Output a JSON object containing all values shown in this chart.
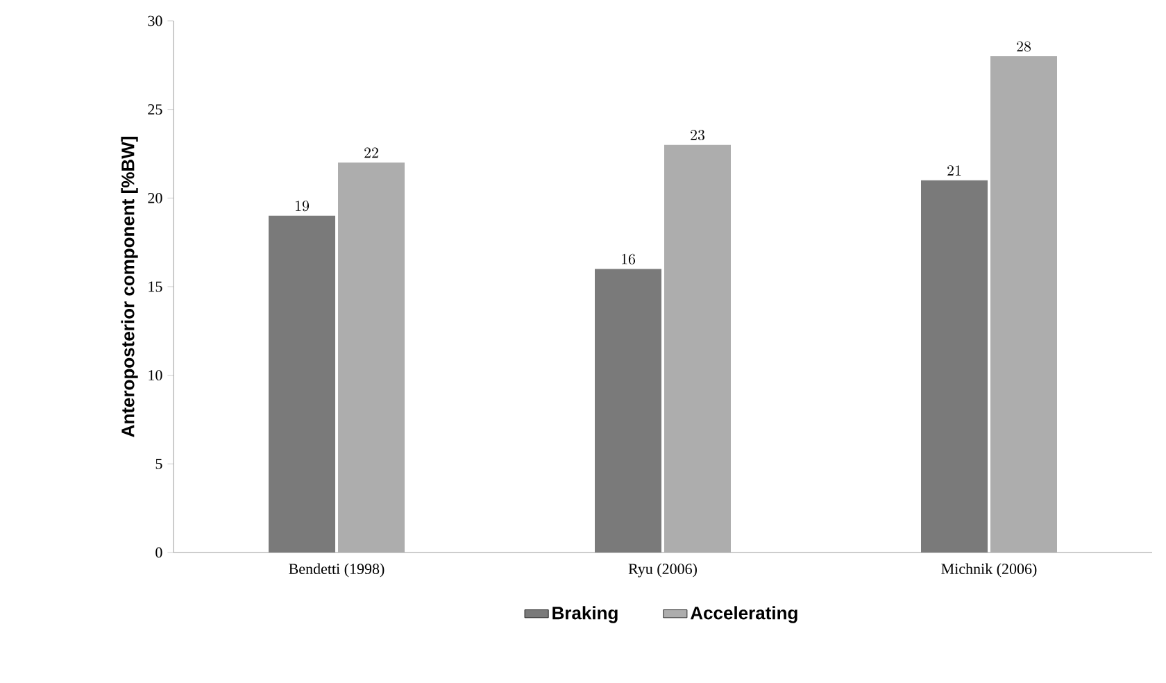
{
  "chart_data": {
    "type": "bar",
    "ylabel": "Anteroposterior component [%BW]",
    "categories": [
      "Bendetti (1998)",
      "Ryu (2006)",
      "Michnik (2006)"
    ],
    "series": [
      {
        "name": "Braking",
        "color": "#7a7a7a",
        "values": [
          19,
          16,
          21
        ]
      },
      {
        "name": "Accelerating",
        "color": "#adadad",
        "values": [
          22,
          23,
          28
        ]
      }
    ],
    "ylim": [
      0,
      30
    ],
    "yticks": [
      0,
      5,
      10,
      15,
      20,
      25,
      30
    ],
    "data_labels": true,
    "legend": "bottom",
    "grid": false
  }
}
